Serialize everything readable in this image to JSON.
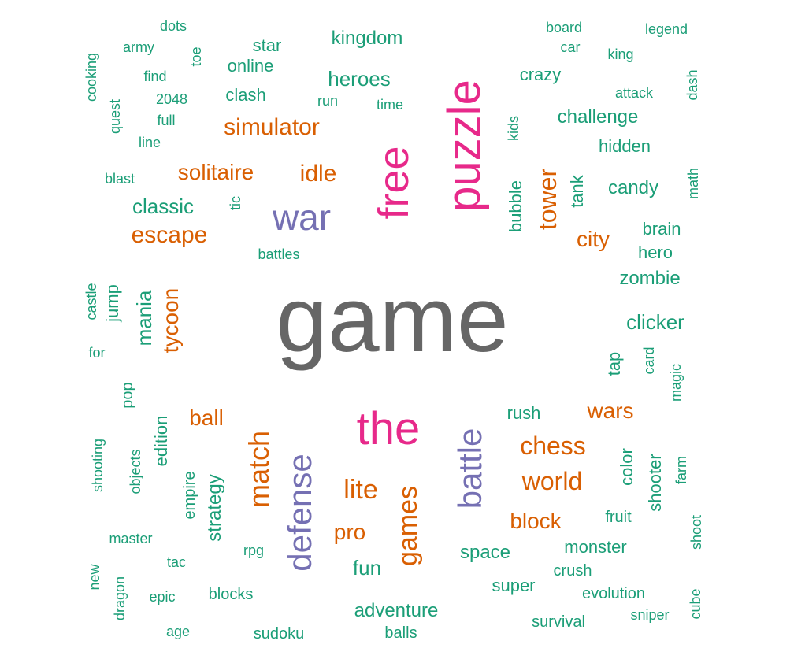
{
  "chart_data": {
    "type": "wordcloud",
    "palette": {
      "gray": "#666666",
      "green": "#1b9e77",
      "orange": "#d95f02",
      "purple": "#7570b3",
      "pink": "#e7298a"
    },
    "words": [
      {
        "text": "game",
        "size": 9,
        "color": "gray",
        "vertical": false
      },
      {
        "text": "puzzle",
        "size": 5,
        "color": "pink",
        "vertical": true
      },
      {
        "text": "the",
        "size": 5,
        "color": "pink",
        "vertical": false
      },
      {
        "text": "free",
        "size": 4.6,
        "color": "pink",
        "vertical": true
      },
      {
        "text": "war",
        "size": 4,
        "color": "purple",
        "vertical": false
      },
      {
        "text": "defense",
        "size": 3.6,
        "color": "purple",
        "vertical": true
      },
      {
        "text": "battle",
        "size": 3.6,
        "color": "purple",
        "vertical": true
      },
      {
        "text": "match",
        "size": 3.2,
        "color": "orange",
        "vertical": true
      },
      {
        "text": "simulator",
        "size": 2.8,
        "color": "orange",
        "vertical": false
      },
      {
        "text": "escape",
        "size": 2.8,
        "color": "orange",
        "vertical": false
      },
      {
        "text": "idle",
        "size": 2.8,
        "color": "orange",
        "vertical": false
      },
      {
        "text": "solitaire",
        "size": 2.6,
        "color": "orange",
        "vertical": false
      },
      {
        "text": "tower",
        "size": 2.8,
        "color": "orange",
        "vertical": true
      },
      {
        "text": "tycoon",
        "size": 2.6,
        "color": "orange",
        "vertical": true
      },
      {
        "text": "city",
        "size": 2.6,
        "color": "orange",
        "vertical": false
      },
      {
        "text": "chess",
        "size": 3,
        "color": "orange",
        "vertical": false
      },
      {
        "text": "world",
        "size": 3,
        "color": "orange",
        "vertical": false
      },
      {
        "text": "lite",
        "size": 3,
        "color": "orange",
        "vertical": false
      },
      {
        "text": "games",
        "size": 3,
        "color": "orange",
        "vertical": true
      },
      {
        "text": "wars",
        "size": 2.6,
        "color": "orange",
        "vertical": false
      },
      {
        "text": "block",
        "size": 2.6,
        "color": "orange",
        "vertical": false
      },
      {
        "text": "ball",
        "size": 2.6,
        "color": "orange",
        "vertical": false
      },
      {
        "text": "pro",
        "size": 2.6,
        "color": "orange",
        "vertical": false
      },
      {
        "text": "heroes",
        "size": 2.4,
        "color": "green",
        "vertical": false
      },
      {
        "text": "kingdom",
        "size": 2.2,
        "color": "green",
        "vertical": false
      },
      {
        "text": "classic",
        "size": 2.4,
        "color": "green",
        "vertical": false
      },
      {
        "text": "challenge",
        "size": 2.2,
        "color": "green",
        "vertical": false
      },
      {
        "text": "clicker",
        "size": 2.4,
        "color": "green",
        "vertical": false
      },
      {
        "text": "zombie",
        "size": 2.2,
        "color": "green",
        "vertical": false
      },
      {
        "text": "candy",
        "size": 2.2,
        "color": "green",
        "vertical": false
      },
      {
        "text": "mania",
        "size": 2.4,
        "color": "green",
        "vertical": true
      },
      {
        "text": "strategy",
        "size": 2.2,
        "color": "green",
        "vertical": true
      },
      {
        "text": "adventure",
        "size": 2.2,
        "color": "green",
        "vertical": false
      },
      {
        "text": "space",
        "size": 2.2,
        "color": "green",
        "vertical": false
      },
      {
        "text": "fun",
        "size": 2.4,
        "color": "green",
        "vertical": false
      },
      {
        "text": "crazy",
        "size": 2,
        "color": "green",
        "vertical": false
      },
      {
        "text": "clash",
        "size": 2,
        "color": "green",
        "vertical": false
      },
      {
        "text": "star",
        "size": 2,
        "color": "green",
        "vertical": false
      },
      {
        "text": "online",
        "size": 2,
        "color": "green",
        "vertical": false
      },
      {
        "text": "hidden",
        "size": 2,
        "color": "green",
        "vertical": false
      },
      {
        "text": "brain",
        "size": 2,
        "color": "green",
        "vertical": false
      },
      {
        "text": "hero",
        "size": 2,
        "color": "green",
        "vertical": false
      },
      {
        "text": "rush",
        "size": 2,
        "color": "green",
        "vertical": false
      },
      {
        "text": "monster",
        "size": 2,
        "color": "green",
        "vertical": false
      },
      {
        "text": "super",
        "size": 2,
        "color": "green",
        "vertical": false
      },
      {
        "text": "bubble",
        "size": 2,
        "color": "green",
        "vertical": true
      },
      {
        "text": "tank",
        "size": 2,
        "color": "green",
        "vertical": true
      },
      {
        "text": "jump",
        "size": 2,
        "color": "green",
        "vertical": true
      },
      {
        "text": "tap",
        "size": 2,
        "color": "green",
        "vertical": true
      },
      {
        "text": "edition",
        "size": 2,
        "color": "green",
        "vertical": true
      },
      {
        "text": "color",
        "size": 2,
        "color": "green",
        "vertical": true
      },
      {
        "text": "shooter",
        "size": 2,
        "color": "green",
        "vertical": true
      },
      {
        "text": "empire",
        "size": 1.8,
        "color": "green",
        "vertical": true
      },
      {
        "text": "pop",
        "size": 1.8,
        "color": "green",
        "vertical": true
      },
      {
        "text": "evolution",
        "size": 1.8,
        "color": "green",
        "vertical": false
      },
      {
        "text": "crush",
        "size": 1.8,
        "color": "green",
        "vertical": false
      },
      {
        "text": "survival",
        "size": 1.8,
        "color": "green",
        "vertical": false
      },
      {
        "text": "fruit",
        "size": 1.8,
        "color": "green",
        "vertical": false
      },
      {
        "text": "blocks",
        "size": 1.8,
        "color": "green",
        "vertical": false
      },
      {
        "text": "sudoku",
        "size": 1.8,
        "color": "green",
        "vertical": false
      },
      {
        "text": "balls",
        "size": 1.8,
        "color": "green",
        "vertical": false
      },
      {
        "text": "board",
        "size": 1.6,
        "color": "green",
        "vertical": false
      },
      {
        "text": "legend",
        "size": 1.6,
        "color": "green",
        "vertical": false
      },
      {
        "text": "car",
        "size": 1.6,
        "color": "green",
        "vertical": false
      },
      {
        "text": "king",
        "size": 1.6,
        "color": "green",
        "vertical": false
      },
      {
        "text": "attack",
        "size": 1.6,
        "color": "green",
        "vertical": false
      },
      {
        "text": "dots",
        "size": 1.6,
        "color": "green",
        "vertical": false
      },
      {
        "text": "army",
        "size": 1.6,
        "color": "green",
        "vertical": false
      },
      {
        "text": "find",
        "size": 1.6,
        "color": "green",
        "vertical": false
      },
      {
        "text": "2048",
        "size": 1.6,
        "color": "green",
        "vertical": false
      },
      {
        "text": "full",
        "size": 1.6,
        "color": "green",
        "vertical": false
      },
      {
        "text": "line",
        "size": 1.6,
        "color": "green",
        "vertical": false
      },
      {
        "text": "run",
        "size": 1.6,
        "color": "green",
        "vertical": false
      },
      {
        "text": "time",
        "size": 1.6,
        "color": "green",
        "vertical": false
      },
      {
        "text": "blast",
        "size": 1.6,
        "color": "green",
        "vertical": false
      },
      {
        "text": "battles",
        "size": 1.6,
        "color": "green",
        "vertical": false
      },
      {
        "text": "for",
        "size": 1.6,
        "color": "green",
        "vertical": false
      },
      {
        "text": "master",
        "size": 1.6,
        "color": "green",
        "vertical": false
      },
      {
        "text": "tac",
        "size": 1.6,
        "color": "green",
        "vertical": false
      },
      {
        "text": "rpg",
        "size": 1.6,
        "color": "green",
        "vertical": false
      },
      {
        "text": "epic",
        "size": 1.6,
        "color": "green",
        "vertical": false
      },
      {
        "text": "age",
        "size": 1.6,
        "color": "green",
        "vertical": false
      },
      {
        "text": "sniper",
        "size": 1.6,
        "color": "green",
        "vertical": false
      },
      {
        "text": "cooking",
        "size": 1.6,
        "color": "green",
        "vertical": true
      },
      {
        "text": "quest",
        "size": 1.6,
        "color": "green",
        "vertical": true
      },
      {
        "text": "toe",
        "size": 1.6,
        "color": "green",
        "vertical": true
      },
      {
        "text": "dash",
        "size": 1.6,
        "color": "green",
        "vertical": true
      },
      {
        "text": "kids",
        "size": 1.6,
        "color": "green",
        "vertical": true
      },
      {
        "text": "math",
        "size": 1.6,
        "color": "green",
        "vertical": true
      },
      {
        "text": "tic",
        "size": 1.6,
        "color": "green",
        "vertical": true
      },
      {
        "text": "castle",
        "size": 1.6,
        "color": "green",
        "vertical": true
      },
      {
        "text": "card",
        "size": 1.6,
        "color": "green",
        "vertical": true
      },
      {
        "text": "magic",
        "size": 1.6,
        "color": "green",
        "vertical": true
      },
      {
        "text": "shooting",
        "size": 1.6,
        "color": "green",
        "vertical": true
      },
      {
        "text": "objects",
        "size": 1.6,
        "color": "green",
        "vertical": true
      },
      {
        "text": "farm",
        "size": 1.6,
        "color": "green",
        "vertical": true
      },
      {
        "text": "shoot",
        "size": 1.6,
        "color": "green",
        "vertical": true
      },
      {
        "text": "new",
        "size": 1.6,
        "color": "green",
        "vertical": true
      },
      {
        "text": "dragon",
        "size": 1.6,
        "color": "green",
        "vertical": true
      },
      {
        "text": "cube",
        "size": 1.6,
        "color": "green",
        "vertical": true
      }
    ]
  }
}
